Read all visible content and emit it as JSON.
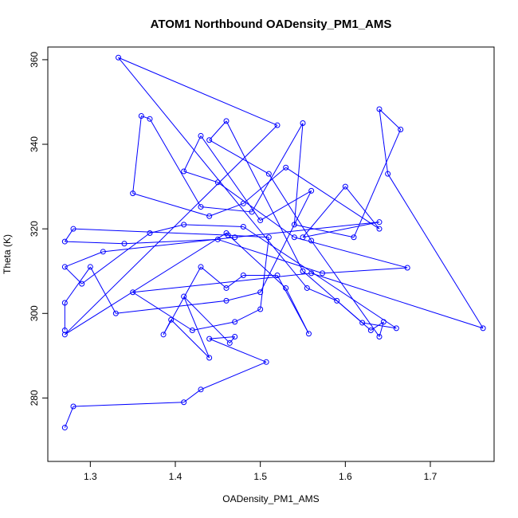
{
  "chart_data": {
    "type": "line",
    "title": "ATOM1 Northbound OADensity_PM1_AMS",
    "xlabel": "OADensity_PM1_AMS",
    "ylabel": "Theta (K)",
    "xlim": [
      1.25,
      1.775
    ],
    "ylim": [
      265,
      363
    ],
    "xticks": [
      1.3,
      1.4,
      1.5,
      1.6,
      1.7
    ],
    "yticks": [
      280,
      300,
      320,
      340,
      360
    ],
    "grid": false,
    "series_color": "#0000ff",
    "markers": "open-circle",
    "series": [
      {
        "name": "",
        "points": [
          [
            1.27,
            273
          ],
          [
            1.28,
            278
          ],
          [
            1.41,
            279
          ],
          [
            1.43,
            282
          ],
          [
            1.507,
            288.5
          ],
          [
            1.44,
            294
          ],
          [
            1.47,
            294.5
          ],
          [
            1.464,
            293
          ],
          [
            1.41,
            304
          ],
          [
            1.44,
            289.5
          ],
          [
            1.395,
            298.5
          ],
          [
            1.386,
            295
          ],
          [
            1.43,
            311
          ],
          [
            1.46,
            306
          ],
          [
            1.48,
            309
          ],
          [
            1.52,
            309
          ],
          [
            1.557,
            295.2
          ],
          [
            1.53,
            306
          ],
          [
            1.46,
            319
          ],
          [
            1.27,
            295
          ],
          [
            1.52,
            344.5
          ],
          [
            1.333,
            360.5
          ],
          [
            1.555,
            306
          ],
          [
            1.59,
            303
          ],
          [
            1.63,
            296
          ],
          [
            1.645,
            298
          ],
          [
            1.64,
            294.5
          ],
          [
            1.56,
            317.2
          ],
          [
            1.51,
            333
          ],
          [
            1.44,
            341
          ],
          [
            1.46,
            345.5
          ],
          [
            1.55,
            310
          ],
          [
            1.62,
            297.8
          ],
          [
            1.66,
            296.5
          ],
          [
            1.48,
            320.5
          ],
          [
            1.41,
            321
          ],
          [
            1.37,
            319
          ],
          [
            1.29,
            307
          ],
          [
            1.27,
            311
          ],
          [
            1.315,
            314.6
          ],
          [
            1.47,
            318
          ],
          [
            1.64,
            321.6
          ],
          [
            1.55,
            318
          ],
          [
            1.6,
            330
          ],
          [
            1.64,
            320
          ],
          [
            1.53,
            334.5
          ],
          [
            1.48,
            326
          ],
          [
            1.44,
            323
          ],
          [
            1.35,
            328.4
          ],
          [
            1.36,
            346.7
          ],
          [
            1.37,
            346
          ],
          [
            1.43,
            325.2
          ],
          [
            1.49,
            324
          ],
          [
            1.55,
            345
          ],
          [
            1.54,
            321
          ],
          [
            1.61,
            318
          ],
          [
            1.665,
            343.5
          ],
          [
            1.64,
            348.3
          ],
          [
            1.65,
            333
          ],
          [
            1.762,
            296.5
          ],
          [
            1.56,
            309.5
          ],
          [
            1.35,
            305
          ],
          [
            1.42,
            296
          ],
          [
            1.47,
            298
          ],
          [
            1.5,
            301
          ],
          [
            1.51,
            318
          ],
          [
            1.462,
            318.5
          ],
          [
            1.28,
            320
          ],
          [
            1.27,
            317
          ],
          [
            1.34,
            316.5
          ],
          [
            1.45,
            317.5
          ],
          [
            1.573,
            309.5
          ],
          [
            1.673,
            310.8
          ],
          [
            1.54,
            318
          ],
          [
            1.45,
            331
          ],
          [
            1.41,
            333.6
          ],
          [
            1.43,
            342
          ],
          [
            1.5,
            322
          ],
          [
            1.56,
            329
          ],
          [
            1.5,
            305
          ],
          [
            1.46,
            303
          ],
          [
            1.33,
            300
          ],
          [
            1.3,
            311
          ],
          [
            1.27,
            302.5
          ],
          [
            1.27,
            296
          ]
        ]
      }
    ]
  }
}
